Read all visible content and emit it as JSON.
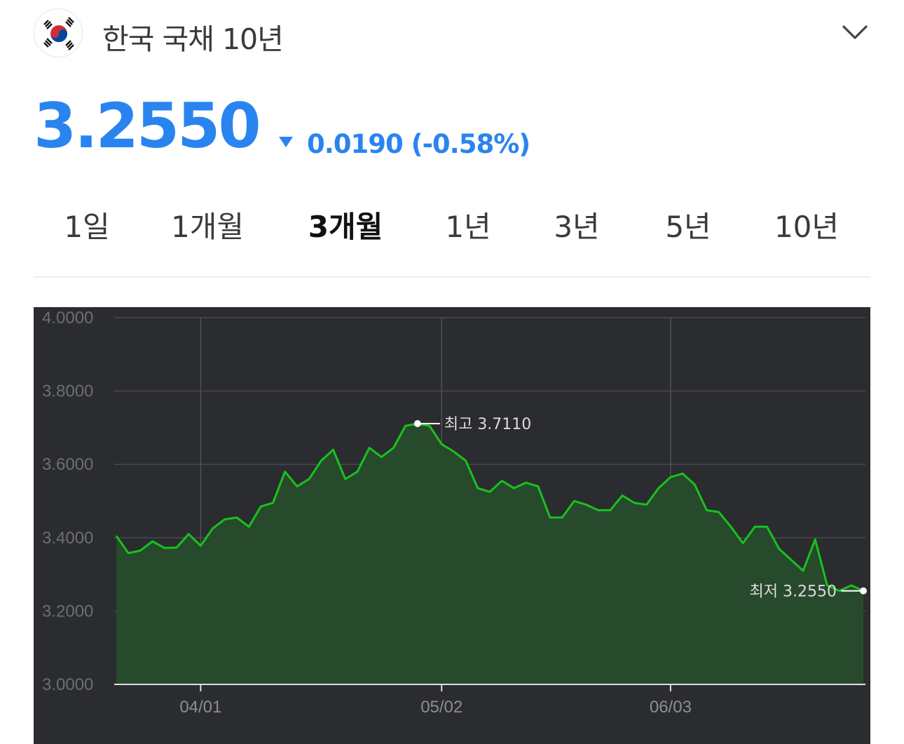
{
  "header": {
    "title": "한국 국채 10년",
    "flag_icon": "south-korea-flag-icon",
    "expand_icon": "chevron-down-icon"
  },
  "quote": {
    "price": "3.2550",
    "direction_icon": "down-triangle-icon",
    "change": "0.0190 (-0.58%)",
    "color": "#2a84f0"
  },
  "tabs": [
    {
      "label": "1일",
      "active": false
    },
    {
      "label": "1개월",
      "active": false
    },
    {
      "label": "3개월",
      "active": true
    },
    {
      "label": "1년",
      "active": false
    },
    {
      "label": "3년",
      "active": false
    },
    {
      "label": "5년",
      "active": false
    },
    {
      "label": "10년",
      "active": false
    }
  ],
  "chart_data": {
    "type": "area",
    "colors": {
      "line": "#17c21d",
      "fill": "#274a2c",
      "background": "#2b2c2f"
    },
    "grid": true,
    "ylim": [
      3.0,
      4.0
    ],
    "y_ticks": [
      "4.0000",
      "3.8000",
      "3.6000",
      "3.4000",
      "3.2000",
      "3.0000"
    ],
    "x_ticks": [
      {
        "label": "04/01",
        "index": 7
      },
      {
        "label": "05/02",
        "index": 27
      },
      {
        "label": "06/03",
        "index": 46
      }
    ],
    "values": [
      3.405,
      3.358,
      3.365,
      3.39,
      3.372,
      3.373,
      3.41,
      3.378,
      3.425,
      3.45,
      3.455,
      3.43,
      3.485,
      3.495,
      3.58,
      3.54,
      3.56,
      3.61,
      3.64,
      3.56,
      3.58,
      3.645,
      3.62,
      3.645,
      3.705,
      3.711,
      3.705,
      3.655,
      3.635,
      3.61,
      3.535,
      3.525,
      3.555,
      3.535,
      3.55,
      3.54,
      3.455,
      3.455,
      3.5,
      3.49,
      3.475,
      3.475,
      3.515,
      3.495,
      3.49,
      3.535,
      3.565,
      3.575,
      3.545,
      3.475,
      3.47,
      3.43,
      3.385,
      3.43,
      3.43,
      3.37,
      3.34,
      3.31,
      3.395,
      3.27,
      3.255,
      3.27,
      3.255
    ],
    "annotations": [
      {
        "label": "최고 3.7110",
        "index": 25,
        "value": 3.711,
        "side": "right"
      },
      {
        "label": "최저 3.2550",
        "index": 62,
        "value": 3.255,
        "side": "left"
      }
    ]
  }
}
